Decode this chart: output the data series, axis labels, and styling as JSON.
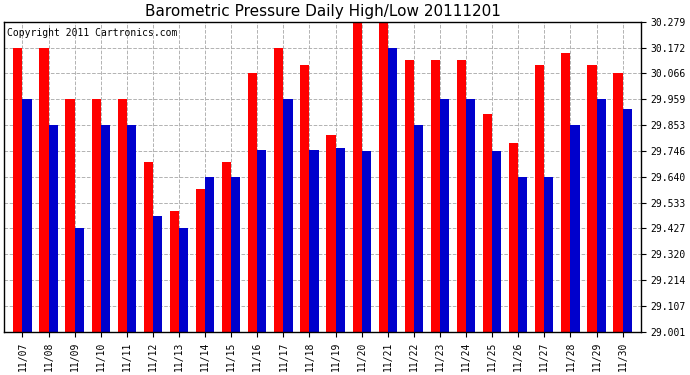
{
  "title": "Barometric Pressure Daily High/Low 20111201",
  "copyright": "Copyright 2011 Cartronics.com",
  "background_color": "#ffffff",
  "plot_bg_color": "#ffffff",
  "bar_color_high": "#ff0000",
  "bar_color_low": "#0000cc",
  "ymin": 29.001,
  "ymax": 30.279,
  "yticks": [
    29.001,
    29.107,
    29.214,
    29.32,
    29.427,
    29.533,
    29.64,
    29.746,
    29.853,
    29.959,
    30.066,
    30.172,
    30.279
  ],
  "dates": [
    "11/07",
    "11/08",
    "11/09",
    "11/10",
    "11/11",
    "11/12",
    "11/13",
    "11/14",
    "11/15",
    "11/16",
    "11/17",
    "11/18",
    "11/19",
    "11/20",
    "11/21",
    "11/22",
    "11/23",
    "11/24",
    "11/25",
    "11/26",
    "11/27",
    "11/28",
    "11/29",
    "11/30"
  ],
  "highs": [
    30.172,
    30.172,
    29.959,
    29.959,
    29.959,
    29.7,
    29.5,
    29.59,
    29.7,
    30.066,
    30.172,
    30.1,
    29.81,
    30.279,
    30.279,
    30.12,
    30.12,
    30.12,
    29.9,
    29.78,
    30.1,
    30.15,
    30.1,
    30.066
  ],
  "lows": [
    29.959,
    29.853,
    29.427,
    29.853,
    29.853,
    29.48,
    29.43,
    29.64,
    29.64,
    29.75,
    29.959,
    29.75,
    29.76,
    29.746,
    30.172,
    29.853,
    29.959,
    29.959,
    29.746,
    29.64,
    29.64,
    29.853,
    29.959,
    29.92
  ],
  "title_fontsize": 11,
  "tick_fontsize": 7,
  "copyright_fontsize": 7,
  "bar_width": 0.35,
  "grid_color": "#aaaaaa",
  "grid_linestyle": "--",
  "grid_linewidth": 0.7,
  "spine_color": "black",
  "spine_linewidth": 1.0
}
